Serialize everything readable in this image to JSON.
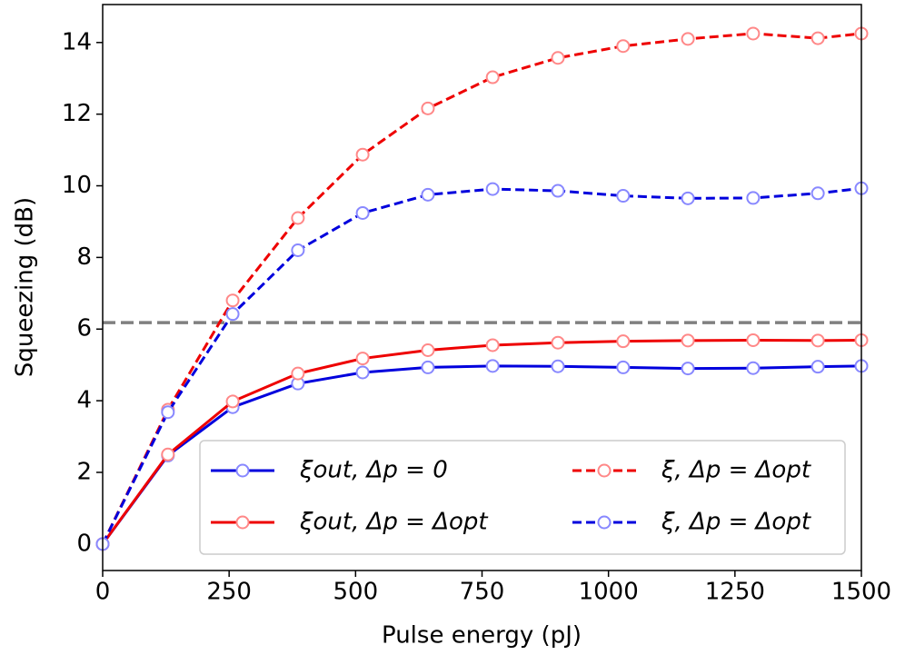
{
  "chart_data": {
    "type": "line",
    "xlabel": "Pulse energy (pJ)",
    "ylabel": "Squeezing (dB)",
    "x": [
      0,
      129,
      257,
      386,
      514,
      643,
      771,
      900,
      1029,
      1157,
      1286,
      1414,
      1500
    ],
    "xlim": [
      0,
      1500
    ],
    "xticks": [
      0,
      250,
      500,
      750,
      1000,
      1250,
      1500
    ],
    "ylim": [
      -0.74,
      15.06
    ],
    "yticks": [
      0,
      2,
      4,
      6,
      8,
      10,
      12,
      14
    ],
    "hline": {
      "value": 6.18,
      "color": "#808080"
    },
    "legend": "lower right",
    "series": [
      {
        "name": "ξout, Δp = 0",
        "color": "#0000dd",
        "marker_color": "#8888ff",
        "style": "solid",
        "values": [
          0,
          2.47,
          3.82,
          4.48,
          4.79,
          4.93,
          4.97,
          4.96,
          4.93,
          4.9,
          4.91,
          4.95,
          4.97
        ]
      },
      {
        "name": "ξout, Δp = Δopt",
        "color": "#ee0000",
        "marker_color": "#ff8888",
        "style": "solid",
        "values": [
          0,
          2.5,
          3.98,
          4.76,
          5.18,
          5.41,
          5.55,
          5.62,
          5.66,
          5.68,
          5.69,
          5.68,
          5.69
        ]
      },
      {
        "name": "ξ, Δp = Δopt",
        "color": "#ee0000",
        "marker_color": "#ff8888",
        "style": "dashed",
        "values": [
          0,
          3.75,
          6.8,
          9.1,
          10.87,
          12.16,
          13.03,
          13.57,
          13.9,
          14.1,
          14.25,
          14.12,
          14.25
        ]
      },
      {
        "name": "ξ, Δp = Δopt",
        "color": "#0000dd",
        "marker_color": "#8888ff",
        "style": "dashed",
        "values": [
          0,
          3.68,
          6.42,
          8.2,
          9.24,
          9.75,
          9.91,
          9.86,
          9.72,
          9.65,
          9.66,
          9.79,
          9.93
        ]
      }
    ]
  }
}
